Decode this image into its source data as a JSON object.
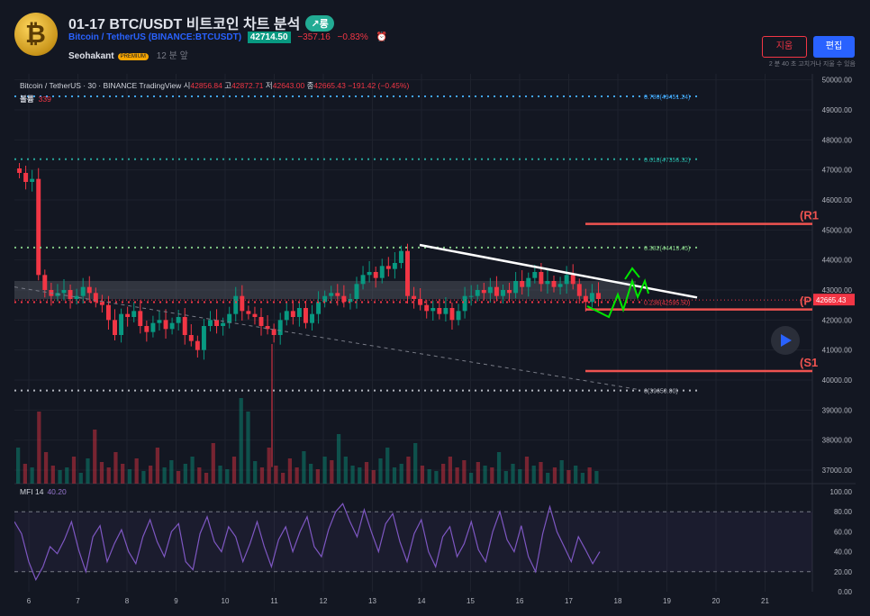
{
  "header": {
    "title": "01-17 BTC/USDT 비트코인 차트 분석",
    "trend_badge": "↗롱",
    "symbol_label": "Bitcoin / TetherUS",
    "symbol_exchange": "(BINANCE:BTCUSDT)",
    "last_price": "42714.50",
    "change": "−357.16",
    "change_pct": "−0.83%",
    "alarm_icon": "alarm-clock-icon",
    "author": "Seohakant",
    "author_badge": "PREMIUM",
    "posted_ago": "12 분 앞",
    "delete_label": "지움",
    "edit_label": "편집",
    "note": "2 분 40 초 고치거나 지울 수 있음"
  },
  "legend": {
    "text": "Bitcoin / TetherUS · 30 · BINANCE   TradingView",
    "open_label": "시",
    "open": "42856.84",
    "high_label": "고",
    "high": "42872.71",
    "low_label": "저",
    "low": "42643.00",
    "close_label": "종",
    "close": "42665.43",
    "chg": "−191.42 (−0.45%)",
    "volume_label": "볼륨",
    "volume": "339"
  },
  "indicator": {
    "name": "MFI 14",
    "value": "40.20"
  },
  "colors": {
    "up": "#089981",
    "down": "#f23645",
    "fib_blue": "#42a5f5",
    "fib_teal": "#26a69a",
    "fib_green": "#81c784",
    "fib_red": "#f23645",
    "mfi": "#7e57c2",
    "level": "#ef5350"
  },
  "chart_data": {
    "type": "candlestick",
    "x_ticks": [
      "6",
      "7",
      "8",
      "9",
      "10",
      "11",
      "12",
      "13",
      "14",
      "15",
      "16",
      "17",
      "18",
      "19",
      "20",
      "21"
    ],
    "y_ticks": [
      "50000.00",
      "49000.00",
      "48000.00",
      "47000.00",
      "46000.00",
      "45000.00",
      "44000.00",
      "43000.00",
      "42000.00",
      "41000.00",
      "40000.00",
      "39000.00",
      "38000.00",
      "37000.00"
    ],
    "ylim": [
      36550,
      50200
    ],
    "mfi_ticks": [
      "100.00",
      "80.00",
      "60.00",
      "40.00",
      "20.00",
      "0.00"
    ],
    "mfi_range": [
      0,
      100
    ],
    "current_price": "42665.43",
    "close_series": [
      46900,
      46600,
      46700,
      43500,
      43000,
      42800,
      42900,
      43000,
      42700,
      42800,
      43100,
      42900,
      42600,
      42500,
      42000,
      41500,
      42200,
      42100,
      42300,
      41800,
      41600,
      41900,
      42000,
      41700,
      41900,
      42100,
      41500,
      41300,
      41000,
      41800,
      42000,
      41800,
      41900,
      42200,
      42800,
      42300,
      42200,
      42100,
      41800,
      41700,
      41500,
      42000,
      42300,
      42100,
      42400,
      41900,
      42200,
      42600,
      42800,
      42900,
      42800,
      42600,
      42700,
      43200,
      43500,
      43600,
      43400,
      43800,
      43700,
      43900,
      44300,
      42800,
      42700,
      42500,
      42300,
      42400,
      42200,
      42400,
      42000,
      42300,
      42800,
      42800,
      43000,
      42900,
      43100,
      42800,
      43000,
      42900,
      43300,
      43100,
      43400,
      43600,
      43200,
      43300,
      43100,
      43200,
      43500,
      43200,
      42800,
      42600,
      42900,
      42700
    ],
    "fib_levels": [
      {
        "label": "0.786(49451.24)",
        "value": 49451.24
      },
      {
        "label": "0.618(47356.32)",
        "value": 47356.32
      },
      {
        "label": "0.382(44413.45)",
        "value": 44413.45
      },
      {
        "label": "0.236(42595.50)",
        "value": 42595.5
      },
      {
        "label": "0(39650.00)",
        "value": 39650
      }
    ],
    "levels": [
      {
        "label": "(R1",
        "value": 45200
      },
      {
        "label": "(P",
        "value": 42350
      },
      {
        "label": "(S1",
        "value": 40300
      }
    ],
    "mfi_series": [
      70,
      58,
      30,
      12,
      25,
      45,
      38,
      52,
      70,
      42,
      20,
      55,
      66,
      30,
      48,
      62,
      40,
      28,
      55,
      72,
      50,
      35,
      60,
      68,
      30,
      22,
      58,
      75,
      50,
      40,
      65,
      55,
      30,
      48,
      70,
      45,
      25,
      52,
      65,
      40,
      60,
      75,
      45,
      35,
      62,
      80,
      88,
      70,
      55,
      82,
      60,
      40,
      68,
      78,
      50,
      30,
      58,
      72,
      40,
      25,
      55,
      65,
      35,
      48,
      70,
      42,
      30,
      60,
      80,
      52,
      40,
      66,
      35,
      20,
      58,
      85,
      60,
      45,
      30,
      55,
      42,
      28,
      40
    ],
    "vol_series": [
      40,
      22,
      18,
      80,
      35,
      20,
      15,
      18,
      30,
      12,
      28,
      60,
      24,
      18,
      35,
      22,
      16,
      28,
      14,
      20,
      40,
      18,
      26,
      14,
      22,
      30,
      18,
      12,
      45,
      20,
      16,
      30,
      95,
      80,
      25,
      18,
      40,
      20,
      12,
      28,
      18,
      36,
      22,
      16,
      30,
      26,
      55,
      30,
      20,
      18,
      24,
      15,
      28,
      40,
      18,
      22,
      30,
      45,
      20,
      16,
      14,
      22,
      30,
      18,
      26,
      12,
      24,
      20,
      18,
      35,
      14,
      22,
      16,
      30,
      20,
      24,
      12,
      18,
      26,
      15,
      20,
      12,
      18,
      14
    ]
  }
}
